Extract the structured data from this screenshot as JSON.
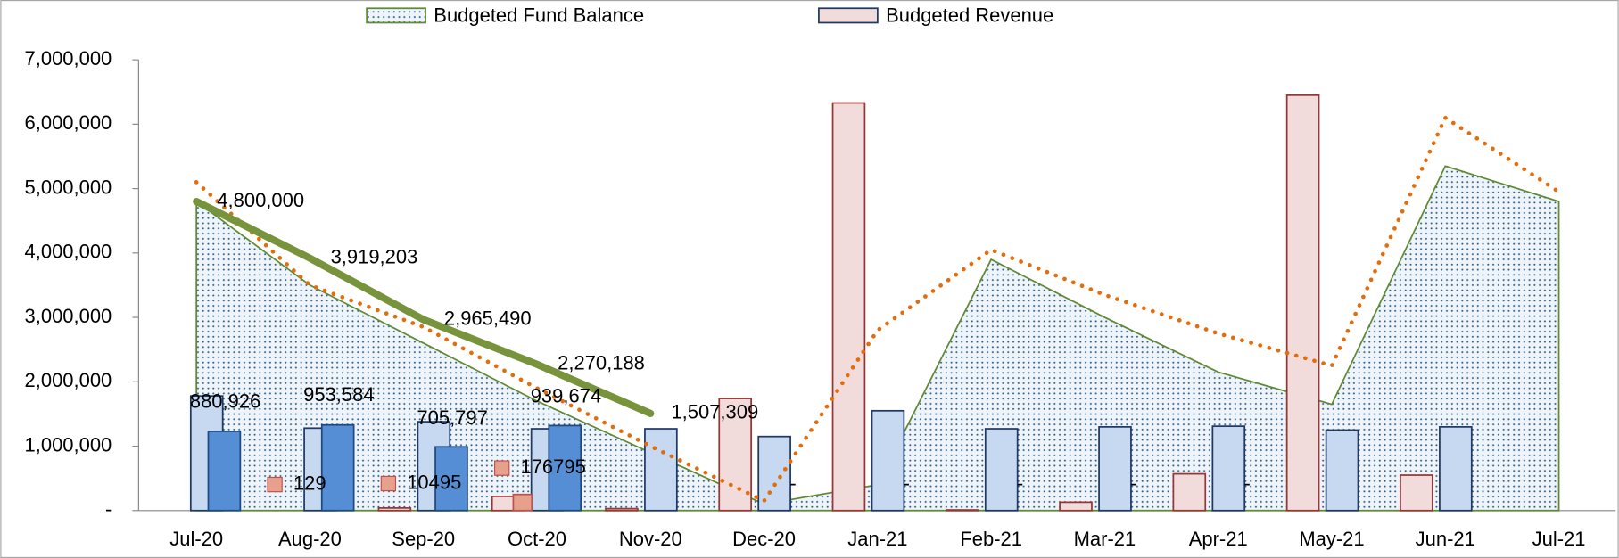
{
  "chart_data": {
    "type": "combo",
    "categories": [
      "Jul-20",
      "Aug-20",
      "Sep-20",
      "Oct-20",
      "Nov-20",
      "Dec-20",
      "Jan-21",
      "Feb-21",
      "Mar-21",
      "Apr-21",
      "May-21",
      "Jun-21",
      "Jul-21"
    ],
    "ylim": [
      0,
      7000000
    ],
    "yticks": [
      {
        "value": 0,
        "label": "-"
      },
      {
        "value": 1000000,
        "label": "1,000,000"
      },
      {
        "value": 2000000,
        "label": "2,000,000"
      },
      {
        "value": 3000000,
        "label": "3,000,000"
      },
      {
        "value": 4000000,
        "label": "4,000,000"
      },
      {
        "value": 5000000,
        "label": "5,000,000"
      },
      {
        "value": 6000000,
        "label": "6,000,000"
      },
      {
        "value": 7000000,
        "label": "7,000,000"
      }
    ],
    "y2lim": [
      -280000,
      4570000
    ],
    "legend": "top",
    "series": [
      {
        "name": "Budgeted Fund Balance",
        "type": "area",
        "color": "#5f8a32",
        "values": [
          4800000,
          3500000,
          2600000,
          1700000,
          900000,
          100000,
          400000,
          3900000,
          3000000,
          2150000,
          1650000,
          5350000,
          4800000
        ]
      },
      {
        "name": "Budgeted Revenue",
        "type": "bar",
        "color": "#f2dcdb",
        "values": [
          0,
          0,
          40000,
          220000,
          30000,
          1740000,
          6330000,
          10000,
          130000,
          570000,
          6450000,
          550000,
          null
        ]
      },
      {
        "type": "bar",
        "color": "#c6d9f1",
        "values": [
          1780000,
          1280000,
          1380000,
          1270000,
          1270000,
          1150000,
          1550000,
          1270000,
          1300000,
          1310000,
          1250000,
          1300000,
          null
        ]
      },
      {
        "type": "bar",
        "color": "#558ed5",
        "values": [
          1230000,
          1330000,
          990000,
          1320000,
          null,
          null,
          null,
          null,
          null,
          null,
          null,
          null,
          null
        ]
      },
      {
        "type": "bar",
        "color": "#e6a08c",
        "values": [
          null,
          null,
          null,
          250000,
          null,
          null,
          null,
          null,
          null,
          null,
          null,
          null,
          null
        ]
      },
      {
        "type": "line",
        "color": "#e46c0a",
        "dash": "dotted",
        "values": [
          5100000,
          3500000,
          2850000,
          1900000,
          1000000,
          150000,
          2800000,
          4050000,
          3350000,
          2750000,
          2250000,
          6100000,
          4950000
        ]
      },
      {
        "type": "line",
        "color": "#77933c",
        "values": [
          4800000,
          3919203,
          2965490,
          2270188,
          1507309,
          null,
          null,
          null,
          null,
          null,
          null,
          null,
          null
        ],
        "value_labels": [
          "4,800,000",
          "3,919,203",
          "2,965,490",
          "2,270,188",
          "1,507,309",
          null,
          null,
          null,
          null,
          null,
          null,
          null,
          null
        ]
      },
      {
        "type": "label",
        "axis": "y2",
        "values": [
          880926,
          953584,
          705797,
          939674,
          null,
          null,
          null,
          null,
          null,
          null,
          null,
          null,
          null
        ],
        "value_labels": [
          "880,926",
          "953,584",
          "705,797",
          "939,674",
          null,
          null,
          null,
          null,
          null,
          null,
          null,
          null,
          null
        ]
      },
      {
        "type": "marker",
        "axis": "y2",
        "color": "#e6a08c",
        "values": [
          null,
          129,
          10495,
          176795,
          null,
          null,
          null,
          null,
          null,
          null,
          null,
          null,
          null
        ]
      },
      {
        "type": "label",
        "axis": "y2",
        "values": [
          null,
          null,
          null,
          null,
          null,
          0,
          0,
          0,
          0,
          0,
          null,
          null,
          null
        ],
        "value_labels": [
          null,
          null,
          null,
          null,
          null,
          "-",
          "-",
          "-",
          "-",
          "-",
          null,
          null,
          null
        ]
      }
    ]
  }
}
